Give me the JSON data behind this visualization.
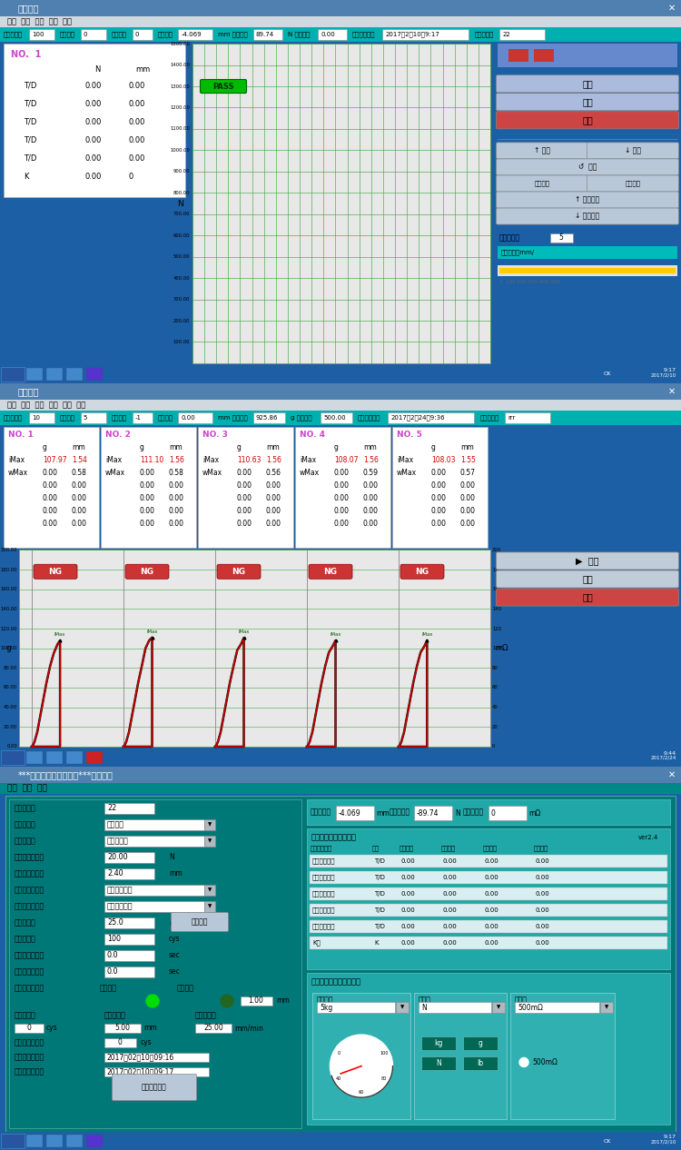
{
  "p1_fields": [
    [
      "测试总次数",
      "100",
      28
    ],
    [
      "当前次数",
      "0",
      28
    ],
    [
      "空压次数",
      "0",
      22
    ],
    [
      "当前行程",
      "-4.069",
      38
    ],
    [
      "mm 当前荷重",
      "89.74",
      32
    ],
    [
      "N 当前电阻",
      "0.00",
      32
    ],
    [
      "开始测试时间",
      "2017年2月10日9:17",
      95
    ],
    [
      "档案名称：",
      "22",
      50
    ]
  ],
  "p2_fields": [
    [
      "测试总次数",
      "10",
      28
    ],
    [
      "当前次数",
      "5",
      28
    ],
    [
      "空压次数",
      "-1",
      22
    ],
    [
      "当前行程",
      "0.00",
      38
    ],
    [
      "mm 当前荷重",
      "925.86",
      35
    ],
    [
      "g 当前电阻",
      "500.00",
      35
    ],
    [
      "开始测试时间",
      "2017年2月24日9:36",
      95
    ],
    [
      "档案名称：",
      "rrr",
      50
    ]
  ],
  "p2_samples": [
    {
      "no": "NO. 1",
      "iMax_g": "107.97",
      "iMax_mm": "1.54",
      "wMax_g": "0.00",
      "wMax_mm": "0.58"
    },
    {
      "no": "NO. 2",
      "iMax_g": "111.10",
      "iMax_mm": "1.56",
      "wMax_g": "0.00",
      "wMax_mm": "0.58"
    },
    {
      "no": "NO. 3",
      "iMax_g": "110.63",
      "iMax_mm": "1.56",
      "wMax_g": "0.00",
      "wMax_mm": "0.56"
    },
    {
      "no": "NO. 4",
      "iMax_g": "108.07",
      "iMax_mm": "1.56",
      "wMax_g": "0.00",
      "wMax_mm": "0.59"
    },
    {
      "no": "NO. 5",
      "iMax_g": "108.03",
      "iMax_mm": "1.55",
      "wMax_g": "0.00",
      "wMax_mm": "0.57"
    }
  ],
  "p2_curves": [
    {
      "x": [
        0,
        0.05,
        0.15,
        0.3,
        0.5,
        0.8,
        1.0,
        1.2,
        1.4,
        1.54,
        1.54,
        0
      ],
      "y": [
        0,
        1,
        5,
        15,
        35,
        65,
        82,
        95,
        104,
        108,
        0,
        0
      ]
    },
    {
      "x": [
        0,
        0.05,
        0.15,
        0.3,
        0.5,
        0.8,
        1.0,
        1.2,
        1.4,
        1.56,
        1.56,
        0
      ],
      "y": [
        0,
        1,
        5,
        15,
        35,
        65,
        82,
        100,
        108,
        111,
        0,
        0
      ]
    },
    {
      "x": [
        0,
        0.05,
        0.15,
        0.3,
        0.5,
        0.8,
        1.0,
        1.2,
        1.4,
        1.56,
        1.56,
        0
      ],
      "y": [
        0,
        1,
        5,
        15,
        35,
        65,
        82,
        98,
        104,
        110.6,
        0,
        0
      ]
    },
    {
      "x": [
        0,
        0.05,
        0.15,
        0.3,
        0.5,
        0.8,
        1.0,
        1.2,
        1.4,
        1.56,
        1.56,
        0
      ],
      "y": [
        0,
        1,
        5,
        15,
        35,
        65,
        82,
        96,
        102,
        108,
        0,
        0
      ]
    },
    {
      "x": [
        0,
        0.05,
        0.15,
        0.3,
        0.5,
        0.8,
        1.0,
        1.2,
        1.4,
        1.55,
        1.55,
        0
      ],
      "y": [
        0,
        1,
        5,
        15,
        35,
        65,
        82,
        96,
        102,
        108,
        0,
        0
      ]
    }
  ],
  "p3_left_fields": [
    [
      "试验名称：",
      "22",
      false,
      ""
    ],
    [
      "运动方向：",
      "压缩试验",
      true,
      ""
    ],
    [
      "试验法则：",
      "检去程测试",
      true,
      ""
    ],
    [
      "荷重测定范围：",
      "20.00",
      false,
      "N"
    ],
    [
      "行程测定范围：",
      "2.40",
      false,
      "mm"
    ],
    [
      "测定位置检出：",
      "开始测定位置",
      true,
      ""
    ],
    [
      "测定原点检出：",
      "一次检出原点",
      true,
      ""
    ],
    [
      "测试速度：",
      "25.0",
      false,
      "mm/min"
    ],
    [
      "测试次数：",
      "100",
      false,
      "cys"
    ],
    [
      "每次暂停时间：",
      "0.0",
      false,
      "sec"
    ],
    [
      "回转暂停时间：",
      "0.0",
      false,
      "sec"
    ]
  ],
  "colors": {
    "win_bg": "#c8d8e8",
    "title_bg": "#5080b0",
    "menu_bg": "#d0d8e0",
    "status_bg": "#00b0b0",
    "chart_bg": "#e8e8e8",
    "grid_green": "#44aa44",
    "grid_dark": "#888888",
    "pass_bg": "#00bb00",
    "ng_bg": "#cc3333",
    "curve_red": "#cc0000",
    "curve_blk": "#111111",
    "btn_blue": "#8899cc",
    "btn_bluelt": "#aabbdd",
    "btn_red": "#cc4444",
    "btn_gray": "#b8c8d8",
    "btn_gray2": "#c0ccd8",
    "teal": "#008888",
    "teal_bg3": "#009090",
    "inner3_bg": "#20a8a8",
    "taskbar": "#1c5fa5",
    "white": "#ffffff",
    "blk": "#000000",
    "cyan_bar": "#00bbbb",
    "yellow": "#ffcc00",
    "purple": "#cc44cc"
  }
}
